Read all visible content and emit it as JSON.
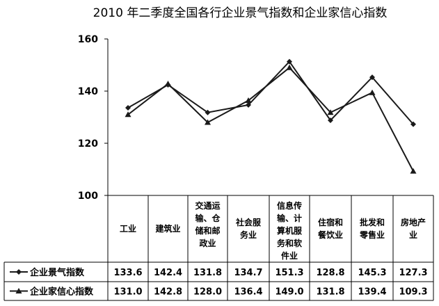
{
  "chart_data": {
    "type": "line",
    "title": "2010 年二季度全国各行企业景气指数和企业家信心指数",
    "categories": [
      [
        "工业"
      ],
      [
        "建筑业"
      ],
      [
        "交通运",
        "输、仓",
        "储和邮",
        "政业"
      ],
      [
        "社会服",
        "务业"
      ],
      [
        "信息传",
        "输、计",
        "算机服",
        "务和软",
        "件业"
      ],
      [
        "住宿和",
        "餐饮业"
      ],
      [
        "批发和",
        "零售业"
      ],
      [
        "房地产",
        "业"
      ]
    ],
    "yticks": [
      "160",
      "140",
      "120",
      "100"
    ],
    "ylim": [
      100,
      160
    ],
    "series": [
      {
        "name": "企业景气指数",
        "marker": "diamond",
        "values": [
          133.6,
          142.4,
          131.8,
          134.7,
          151.3,
          128.8,
          145.3,
          127.3
        ],
        "labels": [
          "133.6",
          "142.4",
          "131.8",
          "134.7",
          "151.3",
          "128.8",
          "145.3",
          "127.3"
        ]
      },
      {
        "name": "企业家信心指数",
        "marker": "triangle",
        "values": [
          131.0,
          142.8,
          128.0,
          136.4,
          149.0,
          131.8,
          139.4,
          109.3
        ],
        "labels": [
          "131.0",
          "142.8",
          "128.0",
          "136.4",
          "149.0",
          "131.8",
          "139.4",
          "109.3"
        ]
      }
    ],
    "line_color": "#1a1a1a"
  }
}
